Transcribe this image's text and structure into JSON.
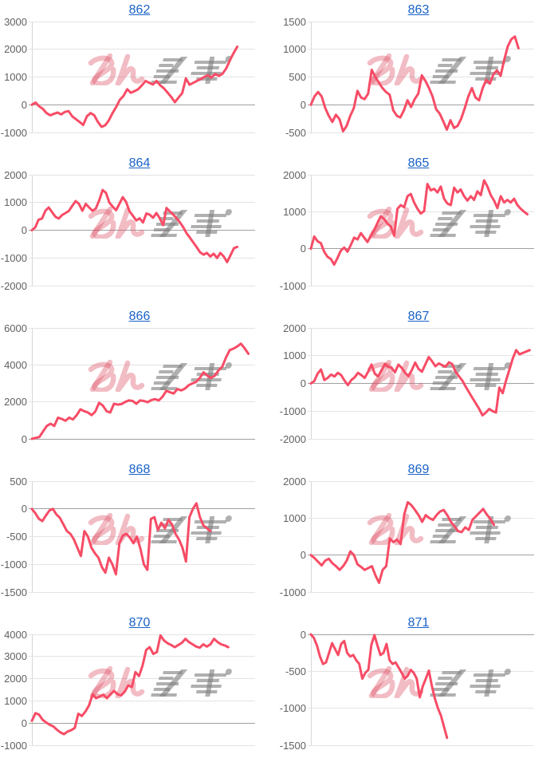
{
  "page": {
    "background": "#ffffff"
  },
  "styles": {
    "line_color": "#f74c66",
    "grid_color": "#e3e3e3",
    "zero_line_color": "#a0a0a0",
    "axis_color": "#d6d6d6",
    "label_color": "#616161",
    "title_link_color": "#1a63c8",
    "watermark_pink": "rgba(222,80,100,0.38)",
    "watermark_gray": "rgba(128,128,128,0.62)"
  },
  "watermark": {
    "icon": "minrepo-watermark",
    "text": "みんレポ"
  },
  "layout": {
    "grid": true,
    "legend": false,
    "columns": 2,
    "rows": 5
  },
  "chart_data": [
    {
      "type": "line",
      "title": "862",
      "ylim": [
        -1000,
        3000
      ],
      "yticks": [
        3000,
        2000,
        1000,
        0,
        -1000
      ],
      "xend": 0.92,
      "values": [
        0,
        80,
        -60,
        -150,
        -300,
        -380,
        -330,
        -280,
        -350,
        -260,
        -230,
        -420,
        -520,
        -620,
        -730,
        -420,
        -300,
        -380,
        -620,
        -800,
        -740,
        -560,
        -300,
        -80,
        180,
        320,
        560,
        430,
        490,
        560,
        700,
        860,
        790,
        730,
        860,
        700,
        590,
        440,
        280,
        90,
        260,
        420,
        950,
        720,
        790,
        860,
        920,
        1000,
        1060,
        980,
        1110,
        1040,
        1120,
        1310,
        1600,
        1860,
        2090
      ]
    },
    {
      "type": "line",
      "title": "863",
      "ylim": [
        -500,
        1500
      ],
      "yticks": [
        1500,
        1000,
        500,
        0,
        -500
      ],
      "xend": 0.93,
      "values": [
        0,
        150,
        230,
        150,
        -60,
        -200,
        -310,
        -180,
        -260,
        -480,
        -380,
        -200,
        -60,
        250,
        130,
        100,
        200,
        630,
        500,
        400,
        300,
        230,
        180,
        -100,
        -200,
        -230,
        -100,
        80,
        -40,
        100,
        200,
        530,
        430,
        300,
        150,
        -80,
        -160,
        -300,
        -450,
        -280,
        -420,
        -380,
        -250,
        -60,
        150,
        300,
        130,
        80,
        300,
        450,
        380,
        550,
        620,
        520,
        800,
        1050,
        1180,
        1230,
        1020
      ]
    },
    {
      "type": "line",
      "title": "864",
      "ylim": [
        -2000,
        2000
      ],
      "yticks": [
        2000,
        1000,
        0,
        -1000,
        -2000
      ],
      "xend": 0.92,
      "values": [
        0,
        100,
        380,
        420,
        700,
        820,
        650,
        480,
        420,
        550,
        620,
        700,
        880,
        1050,
        950,
        700,
        950,
        820,
        700,
        780,
        1080,
        1450,
        1350,
        1000,
        850,
        720,
        950,
        1190,
        1020,
        680,
        520,
        350,
        430,
        280,
        600,
        560,
        450,
        620,
        430,
        180,
        800,
        680,
        560,
        430,
        280,
        100,
        -120,
        -280,
        -450,
        -620,
        -800,
        -880,
        -820,
        -950,
        -850,
        -1000,
        -820,
        -950,
        -1150,
        -900,
        -650,
        -600
      ]
    },
    {
      "type": "line",
      "title": "865",
      "ylim": [
        -1000,
        2000
      ],
      "yticks": [
        2000,
        1000,
        0,
        -1000
      ],
      "xend": 0.97,
      "values": [
        0,
        330,
        200,
        150,
        -80,
        -220,
        -280,
        -430,
        -250,
        -50,
        30,
        -80,
        100,
        300,
        250,
        420,
        300,
        180,
        350,
        500,
        700,
        880,
        800,
        680,
        600,
        350,
        1080,
        1180,
        1120,
        1420,
        1480,
        1250,
        1080,
        950,
        1020,
        1750,
        1580,
        1620,
        1520,
        1680,
        1350,
        1220,
        1180,
        1650,
        1520,
        1600,
        1420,
        1300,
        1420,
        1320,
        1550,
        1450,
        1850,
        1680,
        1450,
        1300,
        1100,
        1420,
        1250,
        1320,
        1250,
        1350,
        1180,
        1080,
        1000,
        930
      ]
    },
    {
      "type": "line",
      "title": "866",
      "ylim": [
        0,
        6000
      ],
      "yticks": [
        6000,
        4000,
        2000,
        0
      ],
      "xend": 0.97,
      "values": [
        0,
        50,
        100,
        400,
        700,
        820,
        700,
        1150,
        1080,
        980,
        1150,
        1050,
        1280,
        1600,
        1500,
        1430,
        1280,
        1480,
        1950,
        1800,
        1500,
        1430,
        1900,
        1850,
        1880,
        2000,
        2080,
        2050,
        1900,
        2080,
        2050,
        1980,
        2100,
        2150,
        2080,
        2280,
        2600,
        2520,
        2450,
        2700,
        2620,
        2720,
        2900,
        3000,
        3080,
        3300,
        3600,
        3420,
        3300,
        3420,
        3700,
        3900,
        4400,
        4800,
        4880,
        5000,
        5150,
        4900,
        4600
      ]
    },
    {
      "type": "line",
      "title": "867",
      "ylim": [
        -2000,
        2000
      ],
      "yticks": [
        2000,
        1000,
        0,
        -1000,
        -2000
      ],
      "xend": 0.98,
      "values": [
        0,
        80,
        350,
        500,
        120,
        200,
        320,
        250,
        380,
        300,
        100,
        -60,
        120,
        220,
        380,
        300,
        200,
        420,
        680,
        350,
        250,
        480,
        700,
        600,
        560,
        400,
        680,
        560,
        380,
        260,
        480,
        750,
        520,
        420,
        680,
        950,
        800,
        620,
        720,
        660,
        600,
        760,
        700,
        420,
        260,
        100,
        -120,
        -320,
        -520,
        -720,
        -920,
        -1150,
        -1050,
        -920,
        -1000,
        -1050,
        -150,
        -350,
        100,
        500,
        900,
        1200,
        1050,
        1100,
        1150,
        1200
      ]
    },
    {
      "type": "line",
      "title": "868",
      "ylim": [
        -1500,
        500
      ],
      "yticks": [
        500,
        0,
        -500,
        -1000,
        -1500
      ],
      "xend": 0.8,
      "values": [
        0,
        -80,
        -180,
        -220,
        -120,
        -30,
        0,
        -100,
        -160,
        -280,
        -400,
        -450,
        -550,
        -700,
        -850,
        -400,
        -500,
        -700,
        -800,
        -880,
        -1050,
        -1150,
        -880,
        -1000,
        -1180,
        -620,
        -480,
        -450,
        -520,
        -620,
        -500,
        -720,
        -1000,
        -1100,
        -180,
        -150,
        -380,
        -250,
        -350,
        -200,
        -280,
        -450,
        -550,
        -700,
        -950,
        -150,
        0,
        100,
        -150,
        -300,
        -350,
        -400
      ]
    },
    {
      "type": "line",
      "title": "869",
      "ylim": [
        -1000,
        2000
      ],
      "yticks": [
        2000,
        1000,
        0,
        -1000
      ],
      "xend": 0.82,
      "values": [
        0,
        -80,
        -180,
        -280,
        -150,
        -100,
        -220,
        -300,
        -400,
        -300,
        -150,
        100,
        0,
        -250,
        -320,
        -400,
        -350,
        -300,
        -550,
        -750,
        -400,
        -300,
        450,
        350,
        420,
        300,
        1100,
        1430,
        1350,
        1220,
        1080,
        900,
        1080,
        1000,
        950,
        1080,
        1180,
        1220,
        1080,
        900,
        780,
        650,
        620,
        750,
        680,
        950,
        1050,
        1150,
        1250,
        1100,
        980,
        820
      ]
    },
    {
      "type": "line",
      "title": "870",
      "ylim": [
        -1000,
        4000
      ],
      "yticks": [
        4000,
        3000,
        2000,
        1000,
        0,
        -1000
      ],
      "xend": 0.88,
      "values": [
        100,
        450,
        380,
        150,
        30,
        -80,
        -150,
        -300,
        -420,
        -500,
        -380,
        -320,
        -220,
        420,
        320,
        520,
        800,
        1300,
        1120,
        1200,
        1280,
        1120,
        1300,
        1450,
        1300,
        1250,
        1420,
        1700,
        1620,
        2300,
        2120,
        2600,
        3300,
        3420,
        3120,
        3200,
        3950,
        3720,
        3600,
        3520,
        3420,
        3520,
        3620,
        3800,
        3650,
        3550,
        3450,
        3400,
        3550,
        3450,
        3550,
        3800,
        3650,
        3550,
        3500,
        3420
      ]
    },
    {
      "type": "line",
      "title": "871",
      "ylim": [
        -1500,
        0
      ],
      "yticks": [
        0,
        -500,
        -1000,
        -1500
      ],
      "xend": 0.61,
      "values": [
        0,
        -50,
        -150,
        -300,
        -400,
        -380,
        -250,
        -120,
        -200,
        -280,
        -130,
        -90,
        -250,
        -300,
        -280,
        -350,
        -400,
        -600,
        -520,
        -480,
        -140,
        -10,
        -150,
        -280,
        -250,
        -130,
        -350,
        -400,
        -380,
        -450,
        -520,
        -600,
        -560,
        -480,
        -520,
        -600,
        -850,
        -700,
        -600,
        -490,
        -700,
        -870,
        -1000,
        -1100,
        -1250,
        -1400
      ]
    }
  ]
}
